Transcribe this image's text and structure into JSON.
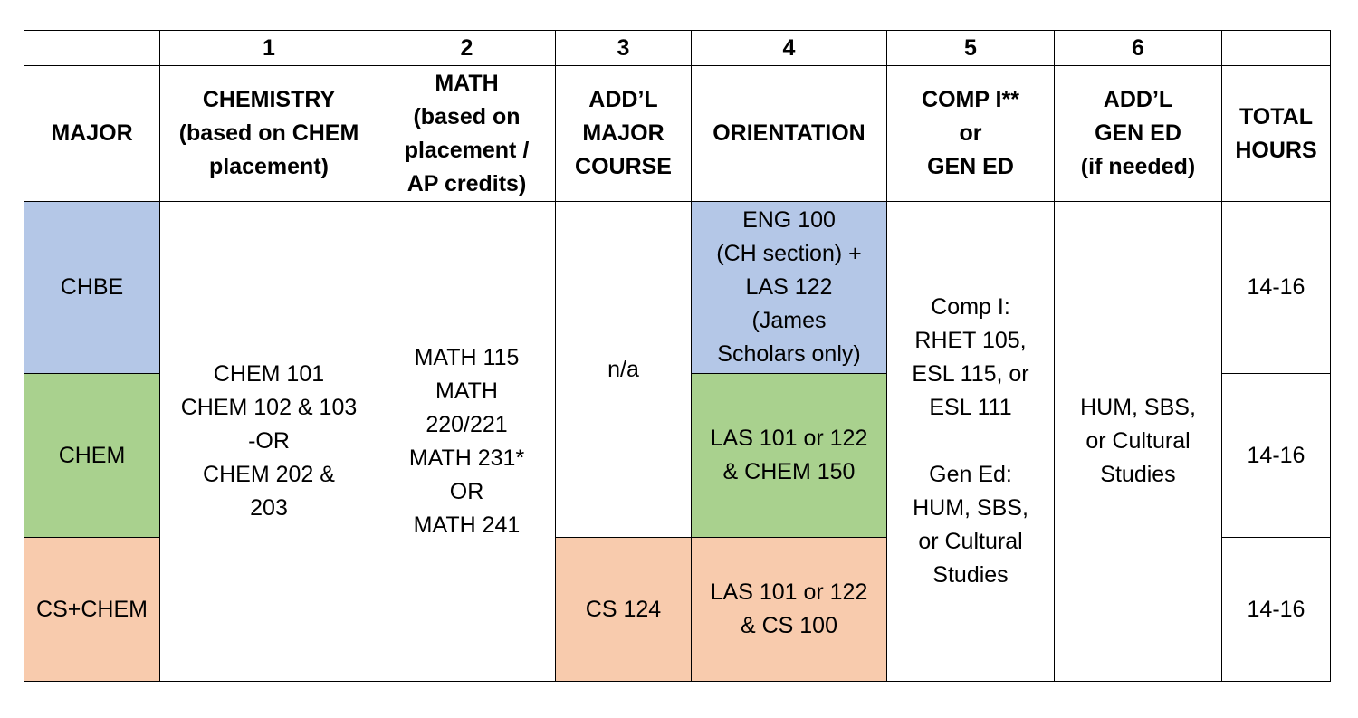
{
  "colors": {
    "chbe": "#b4c7e7",
    "chem": "#a9d18e",
    "cs_chem": "#f8cbad"
  },
  "column_numbers": [
    "1",
    "2",
    "3",
    "4",
    "5",
    "6"
  ],
  "headers": {
    "major": "MAJOR",
    "chemistry": "CHEMISTRY\n(based on CHEM\nplacement)",
    "math": "MATH\n(based on\nplacement /\nAP credits)",
    "addl_major": "ADD’L\nMAJOR\nCOURSE",
    "orientation": "ORIENTATION",
    "comp": "COMP I**\nor\nGEN ED",
    "addl_gen_ed": "ADD’L\nGEN ED\n(if needed)",
    "total_hours": "TOTAL\nHOURS"
  },
  "shared": {
    "chemistry": "CHEM 101\nCHEM 102 & 103\n-OR\nCHEM 202 &\n203",
    "math": "MATH 115\nMATH\n220/221\nMATH 231*\nOR\nMATH 241",
    "addl_major_chbe_chem": "n/a",
    "comp": "Comp I:\nRHET 105,\nESL 115, or\nESL 111\n\nGen Ed:\nHUM, SBS,\nor Cultural\nStudies",
    "addl_gen_ed": "HUM, SBS,\nor Cultural\nStudies"
  },
  "rows": [
    {
      "major": "CHBE",
      "orientation": "ENG 100\n(CH section) +\nLAS 122\n(James\nScholars only)",
      "total_hours": "14-16"
    },
    {
      "major": "CHEM",
      "orientation": "LAS 101 or 122\n& CHEM 150",
      "total_hours": "14-16"
    },
    {
      "major": "CS+CHEM",
      "addl_major": "CS 124",
      "orientation": "LAS 101 or 122\n& CS 100",
      "total_hours": "14-16"
    }
  ]
}
